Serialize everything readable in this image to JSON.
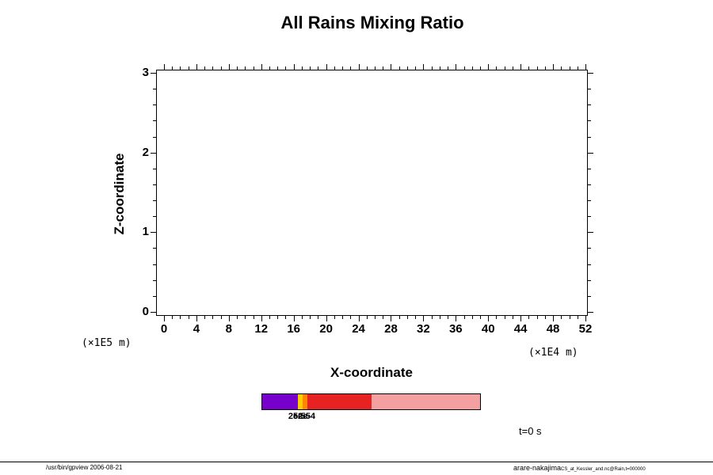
{
  "title": "All Rains Mixing Ratio",
  "axes": {
    "x": {
      "label": "X-coordinate",
      "unit": "(×1E4 m)",
      "min": 0,
      "max": 52,
      "major_ticks": [
        0,
        4,
        8,
        12,
        16,
        20,
        24,
        28,
        32,
        36,
        40,
        44,
        48,
        52
      ],
      "minor_tick_step": 1
    },
    "y": {
      "label": "Z-coordinate",
      "unit": "(×1E5 m)",
      "min": 0,
      "max": 3,
      "major_ticks": [
        0,
        1,
        2,
        3
      ],
      "minor_tick_step": 0.2
    }
  },
  "colorbar": {
    "segments": [
      {
        "color": "#7700CC",
        "width_pct": 16.2
      },
      {
        "color": "#FFCC00",
        "width_pct": 2.2
      },
      {
        "color": "#FF8800",
        "width_pct": 2.2
      },
      {
        "color": "#E62222",
        "width_pct": 29.6
      },
      {
        "color": "#F4A0A0",
        "width_pct": 49.8
      }
    ],
    "labels": [
      {
        "text": "2e-5",
        "pos_pct": 16.2
      },
      {
        "text": "5e-5",
        "pos_pct": 18.4
      },
      {
        "text": "2e-4",
        "pos_pct": 20.6
      }
    ]
  },
  "time_label": "t=0 s",
  "footer": {
    "left": "/usr/bin/gpview 2006-08-21",
    "right": "arare-nakajima",
    "right_small": "CS_at_Kessler_and.nc@Rain,t=000000"
  },
  "chart_data": {
    "type": "heatmap",
    "title": "All Rains Mixing Ratio",
    "xlabel": "X-coordinate",
    "ylabel": "Z-coordinate",
    "x_unit": "(×1E4 m)",
    "y_unit": "(×1E5 m)",
    "xlim": [
      0,
      52
    ],
    "ylim": [
      0,
      3
    ],
    "x_ticks": [
      0,
      4,
      8,
      12,
      16,
      20,
      24,
      28,
      32,
      36,
      40,
      44,
      48,
      52
    ],
    "y_ticks": [
      0,
      1,
      2,
      3
    ],
    "time": "t=0 s",
    "values": [],
    "note": "Rain mixing ratio field is zero everywhere at t=0 s; plot area is empty with no contours or shading drawn.",
    "colorbar_levels": [
      "2e-5",
      "5e-5",
      "2e-4"
    ],
    "colorbar_colors": [
      "#7700CC",
      "#FFCC00",
      "#FF8800",
      "#E62222",
      "#F4A0A0"
    ],
    "grid": false,
    "legend_position": "horizontal colorbar below x-axis"
  }
}
